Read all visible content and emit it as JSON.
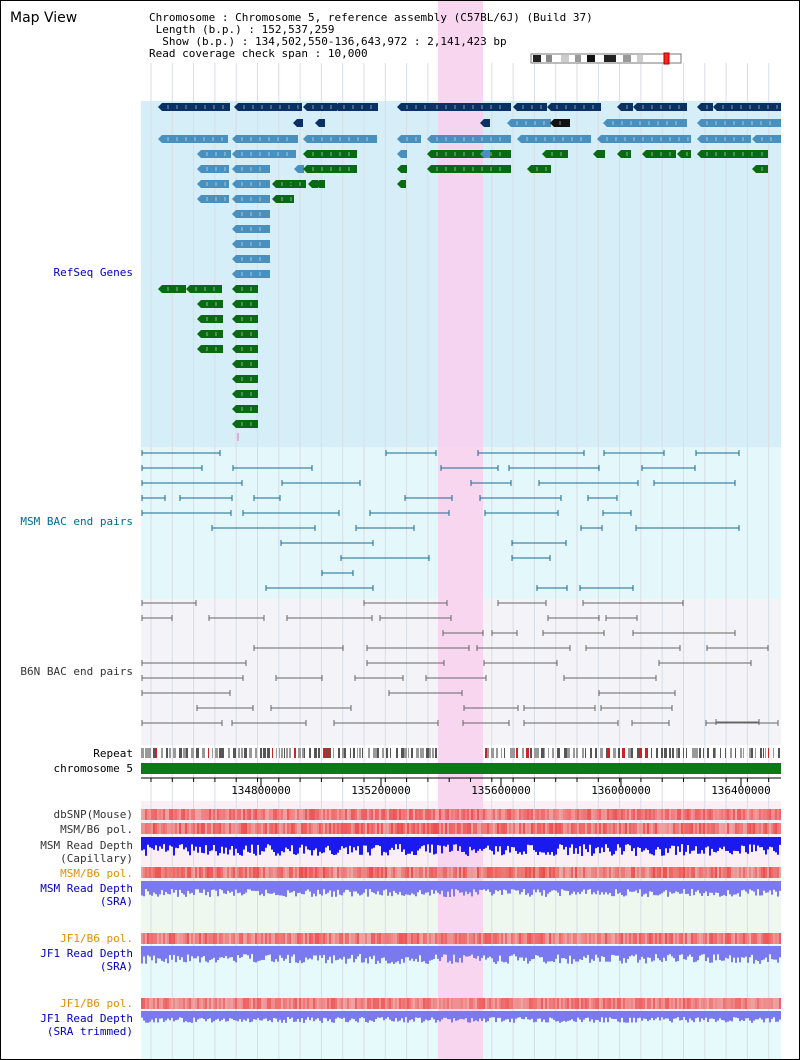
{
  "page": {
    "title": "Map View"
  },
  "info": {
    "chromosome_key": "Chromosome",
    "chromosome_val": "Chromosome 5, reference assembly (C57BL/6J) (Build 37)",
    "length_key": "Length (b.p.)",
    "length_val": "152,537,259",
    "show_key": "Show (b.p.)",
    "show_val": "134,502,550-136,643,972 : 2,141,423 bp",
    "span_key": "Read coverage check span",
    "span_val": "10,000"
  },
  "tracks": {
    "refseq": "RefSeq Genes",
    "msm_bac": "MSM BAC end pairs",
    "b6n_bac": "B6N BAC end pairs",
    "repeat": "Repeat",
    "chromosome": "chromosome 5",
    "dbsnp": "dbSNP(Mouse)",
    "msm_b6_pol_1": "MSM/B6 pol.",
    "msm_depth_cap_1": "MSM Read Depth",
    "msm_depth_cap_2": "(Capillary)",
    "msm_b6_pol_2": "MSM/B6 pol.",
    "msm_depth_sra_1": "MSM Read Depth",
    "msm_depth_sra_2": "(SRA)",
    "jf1_b6_pol_1": "JF1/B6 pol.",
    "jf1_depth_sra_1": "JF1 Read Depth",
    "jf1_depth_sra_2": "(SRA)",
    "jf1_b6_pol_2": "JF1/B6 pol.",
    "jf1_depth_trim_1": "JF1 Read Depth",
    "jf1_depth_trim_2": "(SRA trimmed)"
  },
  "axis": {
    "ticks": [
      "134800000",
      "135200000",
      "135600000",
      "136000000",
      "136400000"
    ]
  },
  "colors": {
    "refseq_bg": "#d6eef8",
    "bac_bg": "#e4f8fb",
    "b6n_bg": "#f4f4f8",
    "highlight": "#f8d6f0",
    "gene_dark": "#0a3164",
    "gene_mid": "#4a90bf",
    "gene_green": "#0a6a14",
    "chrom_bar": "#0a7a14",
    "msm_bac": "#1a6a90",
    "b6n_bac": "#666666",
    "pol": "#ee3a3a",
    "depth_cap": "#1a1aee",
    "depth_sra": "#7a7aee"
  }
}
